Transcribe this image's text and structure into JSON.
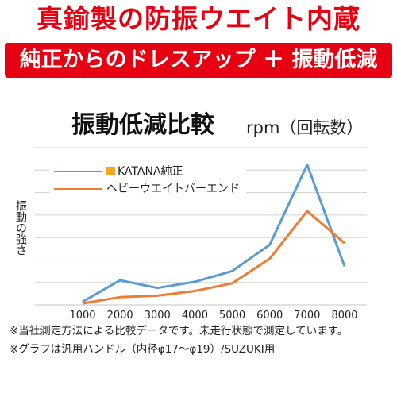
{
  "headline": "真鍮製の防振ウエイト内蔵",
  "banner": "純正からのドレスアップ ＋ 振動低減",
  "chart_data": {
    "type": "line",
    "title": "振動低減比較",
    "subtitle": "rpm（回転数）",
    "xlabel": "",
    "ylabel": "振動の強さ",
    "x": [
      1000,
      2000,
      3000,
      4000,
      5000,
      6000,
      7000,
      8000
    ],
    "tick_labels": [
      "1000",
      "2000",
      "3000",
      "4000",
      "5000",
      "6000",
      "7000",
      "8000"
    ],
    "xlim": [
      1000,
      8000
    ],
    "ylim": [
      0,
      10
    ],
    "grid": "horizontal",
    "legend_position": "top-left",
    "series": [
      {
        "name": "KATANA純正",
        "color": "#5b9bd5",
        "values": [
          0.2,
          1.6,
          1.1,
          1.5,
          2.2,
          3.9,
          9.1,
          2.5
        ]
      },
      {
        "name": "ヘビーウエイトバーエンド",
        "color": "#ed7d31",
        "values": [
          0.1,
          0.5,
          0.6,
          0.9,
          1.4,
          3.0,
          6.1,
          4.0
        ]
      }
    ]
  },
  "notes": [
    "※当社測定方法による比較データです。未走行状態で測定しています。",
    "※グラフは汎用ハンドル（内径φ17～φ19）/SUZUKI用"
  ]
}
